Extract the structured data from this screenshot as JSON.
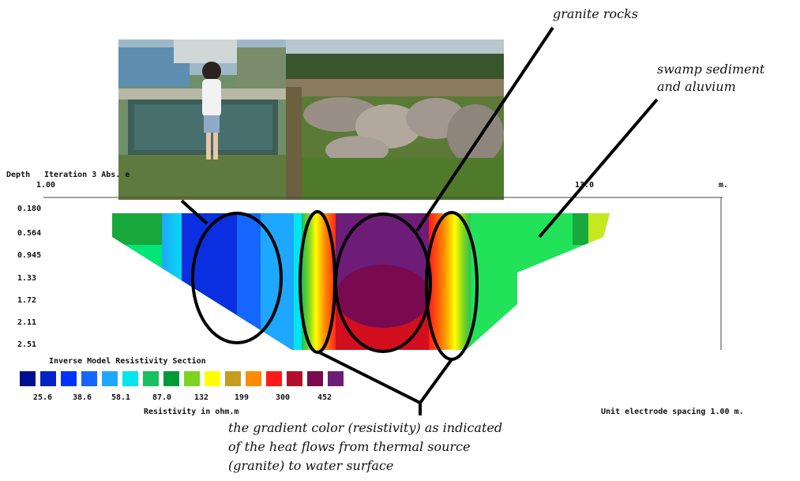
{
  "annotations": {
    "granite": "granite rocks",
    "swamp_line1": "swamp sediment",
    "swamp_line2": "and aluvium",
    "gradient_line1": "the gradient color (resistivity) as indicated",
    "gradient_line2": "of the heat flows from thermal source",
    "gradient_line3": "(granite) to water surface"
  },
  "section": {
    "depth_label": "Depth",
    "iteration_label": "Iteration 3 Abs. e",
    "x_start": "1.00",
    "x_mid": "13.0",
    "x_unit": "m.",
    "depth_ticks": [
      "0.180",
      "0.564",
      "0.945",
      "1.33",
      "1.72",
      "2.11",
      "2.51"
    ],
    "legend_title": "Inverse Model Resistivity Section",
    "scale_values": [
      "25.6",
      "38.6",
      "58.1",
      "87.0",
      "132",
      "199",
      "300",
      "452"
    ],
    "scale_colors": [
      "#000f8f",
      "#0022c8",
      "#0033ff",
      "#1565ff",
      "#1ea7ff",
      "#00e5ee",
      "#18c060",
      "#009a3a",
      "#7ed321",
      "#ffff00",
      "#c69c21",
      "#ff8c00",
      "#ff1a1a",
      "#b30f2a",
      "#7a0a4f",
      "#6d1d78"
    ],
    "unit_label": "Resistivity in ohm.m",
    "spacing_label": "Unit electrode spacing 1.00 m."
  }
}
